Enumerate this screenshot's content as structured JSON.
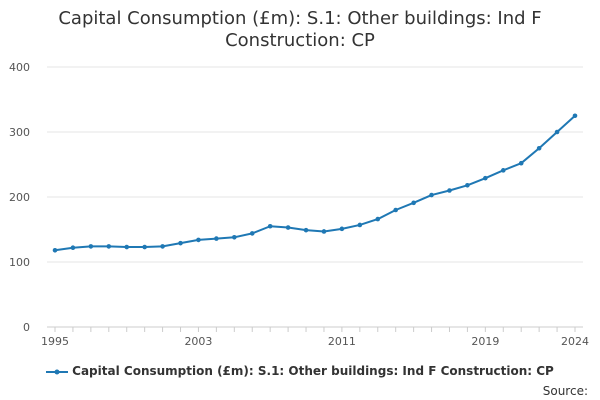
{
  "chart_data": {
    "type": "line",
    "title_line1": "Capital Consumption (£m): S.1: Other buildings: Ind F",
    "title_line2": "Construction: CP",
    "xlabel": "",
    "ylabel": "",
    "x": [
      1995,
      1996,
      1997,
      1998,
      1999,
      2000,
      2001,
      2002,
      2003,
      2004,
      2005,
      2006,
      2007,
      2008,
      2009,
      2010,
      2011,
      2012,
      2013,
      2014,
      2015,
      2016,
      2017,
      2018,
      2019,
      2020,
      2021,
      2022,
      2023,
      2024
    ],
    "series": [
      {
        "name": "Capital Consumption (£m): S.1: Other buildings: Ind F Construction: CP",
        "color": "#1f78b4",
        "values": [
          118,
          122,
          124,
          124,
          123,
          123,
          124,
          129,
          134,
          136,
          138,
          144,
          155,
          153,
          149,
          147,
          151,
          157,
          166,
          180,
          191,
          203,
          210,
          218,
          229,
          241,
          252,
          275,
          300,
          325
        ]
      }
    ],
    "ylim": [
      0,
      400
    ],
    "y_ticks": [
      0,
      100,
      200,
      300,
      400
    ],
    "x_ticks": [
      1995,
      2003,
      2011,
      2019,
      2024
    ],
    "grid": true,
    "legend_position": "bottom"
  },
  "source_label": "Source:"
}
